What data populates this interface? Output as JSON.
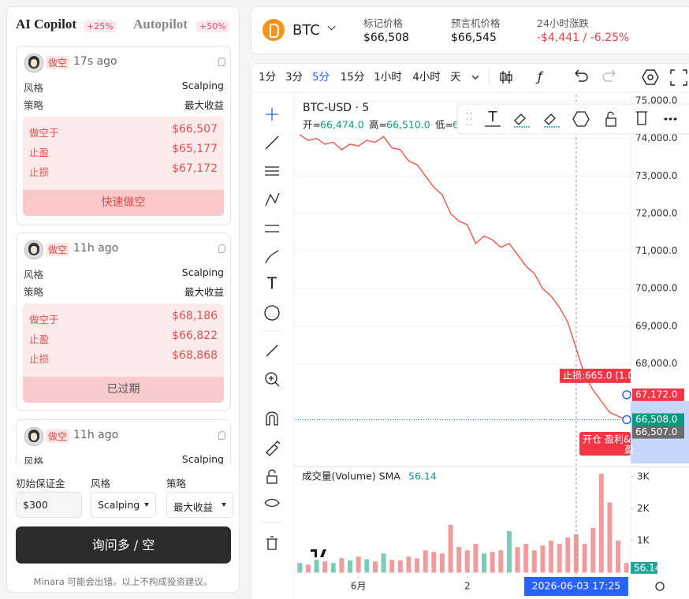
{
  "left_panel": {
    "tabs": [
      {
        "label": "AI Copilot",
        "badge": "+25%"
      },
      {
        "label": "Autopilot",
        "badge": "+50%"
      }
    ],
    "cards": [
      {
        "side": "做空",
        "time": "17s ago",
        "details": [
          [
            "风格",
            "Scalping"
          ],
          [
            "策略",
            "最大收益"
          ]
        ],
        "orders": [
          [
            "做空于",
            "$66,507"
          ],
          [
            "止盈",
            "$65,177"
          ],
          [
            "止损",
            "$67,172"
          ]
        ],
        "action": "快速做空"
      },
      {
        "side": "做空",
        "time": "11h ago",
        "details": [
          [
            "风格",
            "Scalping"
          ],
          [
            "策略",
            "最大收益"
          ]
        ],
        "orders": [
          [
            "做空于",
            "$68,186"
          ],
          [
            "止盈",
            "$66,822"
          ],
          [
            "止损",
            "$68,868"
          ]
        ],
        "action": "已过期"
      },
      {
        "side": "做空",
        "time": "11h ago",
        "details": [
          [
            "风格",
            "Scalping"
          ]
        ]
      }
    ],
    "form": {
      "fields": [
        {
          "label": "初始保证金",
          "value": "$300"
        },
        {
          "label": "风格",
          "value": "Scalping"
        },
        {
          "label": "策略",
          "value": "最大收益"
        }
      ],
      "button": "询问多 / 空",
      "footer": "Minara 可能会出错。以上不构成投资建议。"
    }
  },
  "header": {
    "symbol": "BTC",
    "stats": [
      {
        "label": "标记价格",
        "value": "$66,508"
      },
      {
        "label": "预言机价格",
        "value": "$66,545"
      },
      {
        "label": "24小时涨跌",
        "value": "-$4,441 / -6.25%"
      }
    ]
  },
  "toolbar": {
    "intervals": [
      "1分",
      "3分",
      "5分",
      "15分",
      "1小时",
      "4小时",
      "天"
    ],
    "active_interval": "5分"
  },
  "chart_data": [
    {
      "type": "line",
      "title": "BTC-USD · 5",
      "ohlc": [
        [
          "开=",
          "66,474.0"
        ],
        [
          "高=",
          "66,510.0"
        ],
        [
          "低=",
          "6"
        ]
      ],
      "color": "#ef5350",
      "values": [
        74100,
        73950,
        74000,
        73850,
        73900,
        73700,
        73850,
        73800,
        73950,
        73900,
        74050,
        73750,
        73700,
        73400,
        73300,
        73000,
        72700,
        72500,
        72000,
        71800,
        71700,
        71200,
        71400,
        71300,
        71100,
        71200,
        70900,
        70600,
        70400,
        70000,
        69800,
        69500,
        69100,
        68400,
        67700,
        67300,
        67000,
        66700,
        66600,
        66508
      ],
      "ylim": [
        65300,
        75170
      ],
      "yticks": [
        {
          "value": 68000,
          "label": "68,000.0"
        },
        {
          "value": 69000,
          "label": "69,000.0"
        },
        {
          "value": 70000,
          "label": "70,000.0"
        },
        {
          "value": 71000,
          "label": "71,000.0"
        },
        {
          "value": 72000,
          "label": "72,000.0"
        },
        {
          "value": 73000,
          "label": "73,000.0"
        },
        {
          "value": 74000,
          "label": "74,000.0"
        },
        {
          "value": 75000,
          "label": "75,000.0"
        }
      ],
      "grid": true,
      "price_labels": [
        {
          "value": 67172,
          "label": "67,172.0",
          "color": "#f23645"
        },
        {
          "value": 66508,
          "label": "66,508.0",
          "color": "#089981"
        },
        {
          "value": 66507,
          "label": "66,507.0",
          "color": "#6b6b6b"
        }
      ],
      "order_labels": [
        "止损:665.0 (1.0",
        "开仓 盈利&",
        "盈"
      ]
    },
    {
      "type": "bar",
      "title": "成交量(Volume) SMA",
      "indicator_value": 56.14,
      "up_color": "#7ccbb9",
      "down_color": "#f19c9c",
      "values": [
        300,
        250,
        400,
        350,
        300,
        450,
        380,
        500,
        420,
        350,
        600,
        400,
        380,
        500,
        450,
        700,
        650,
        600,
        1500,
        800,
        700,
        900,
        600,
        650,
        700,
        1300,
        800,
        900,
        700,
        850,
        1000,
        900,
        1100,
        1200,
        900,
        1400,
        3100,
        2200,
        1000,
        300
      ],
      "ylim": [
        0,
        3250
      ],
      "yticks": [
        {
          "value": 1000,
          "label": "1K"
        },
        {
          "value": 2000,
          "label": "2K"
        },
        {
          "value": 3000,
          "label": "3K"
        }
      ],
      "xticks": [
        {
          "value": 7,
          "label": "6月"
        },
        {
          "value": 20,
          "label": "2"
        }
      ],
      "crosshair": {
        "value": 33,
        "label": "2026-06-03  17:25"
      }
    }
  ]
}
